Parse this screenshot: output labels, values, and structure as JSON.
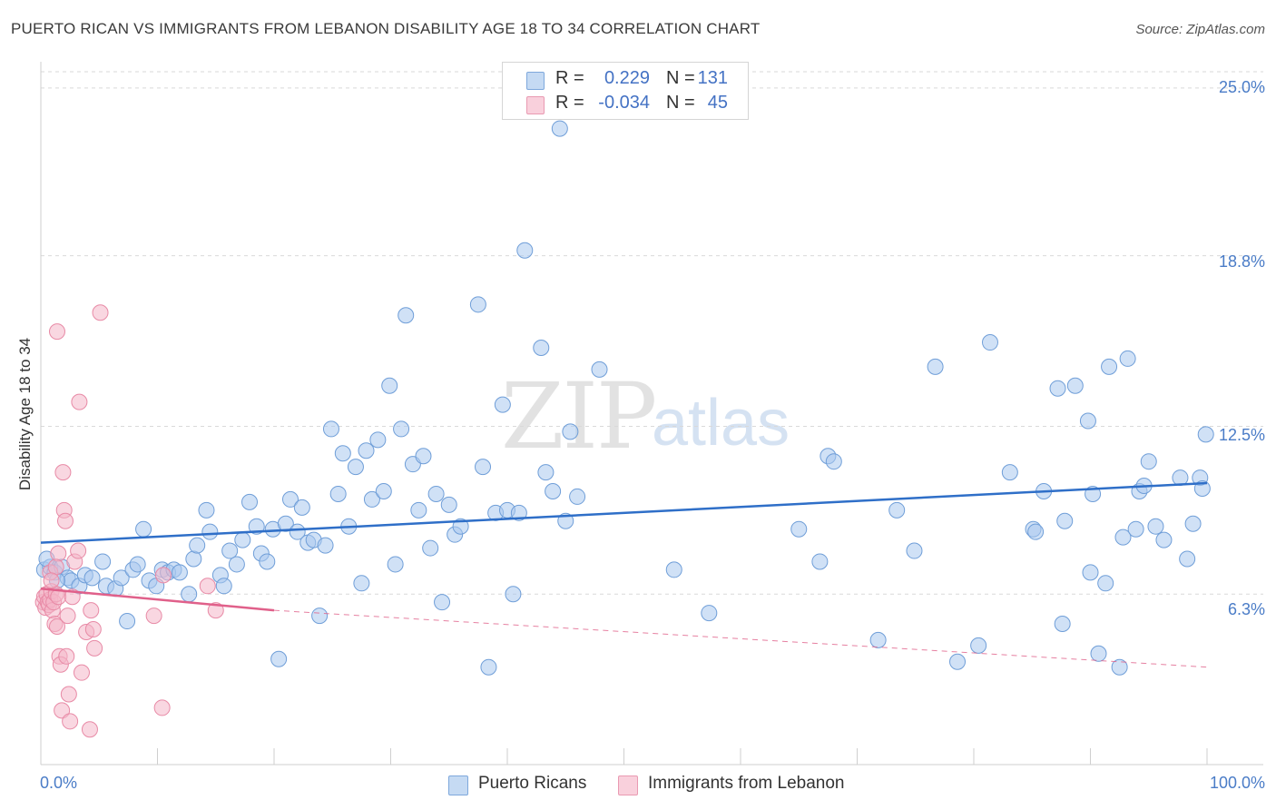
{
  "header": {
    "title": "PUERTO RICAN VS IMMIGRANTS FROM LEBANON DISABILITY AGE 18 TO 34 CORRELATION CHART",
    "source": "Source: ZipAtlas.com"
  },
  "watermark": {
    "zip": "ZIP",
    "atlas": "atlas"
  },
  "legend": {
    "r_label": "R =",
    "n_label": "N =",
    "series": [
      {
        "name": "Puerto Ricans",
        "r": "0.229",
        "n": "131",
        "color": "#a9c8ee"
      },
      {
        "name": "Immigrants from Lebanon",
        "r": "-0.034",
        "n": "45",
        "color": "#f4b6c8"
      }
    ]
  },
  "colors": {
    "blue_fill": "#a9c8ee",
    "blue_stroke": "#6f9ed8",
    "blue_line": "#2f6fc8",
    "pink_fill": "#f4b6c8",
    "pink_stroke": "#e88aa6",
    "pink_line": "#e0608a",
    "tick_text": "#4a7cc7",
    "grid": "#d9d9d9"
  },
  "chart_data": {
    "type": "scatter",
    "title": "PUERTO RICAN VS IMMIGRANTS FROM LEBANON DISABILITY AGE 18 TO 34 CORRELATION CHART",
    "xlabel": "",
    "ylabel": "Disability Age 18 to 34",
    "x_tick_labels": [
      "0.0%",
      "100.0%"
    ],
    "y_tick_labels": [
      "6.3%",
      "12.5%",
      "18.8%",
      "25.0%"
    ],
    "y_ticks": [
      6.3,
      12.5,
      18.8,
      25.0
    ],
    "xlim": [
      0,
      100
    ],
    "ylim": [
      0,
      25.6
    ],
    "grid": true,
    "legend_position": "top-center",
    "series": [
      {
        "name": "Puerto Ricans",
        "points": [
          [
            0.3,
            7.2
          ],
          [
            0.8,
            7.3
          ],
          [
            1.2,
            7.1
          ],
          [
            1.8,
            7.3
          ],
          [
            2.3,
            6.9
          ],
          [
            2.6,
            6.8
          ],
          [
            3.3,
            6.6
          ],
          [
            3.8,
            7.0
          ],
          [
            4.4,
            6.9
          ],
          [
            5.3,
            7.5
          ],
          [
            5.6,
            6.6
          ],
          [
            6.4,
            6.5
          ],
          [
            6.9,
            6.9
          ],
          [
            7.4,
            5.3
          ],
          [
            7.9,
            7.2
          ],
          [
            8.3,
            7.4
          ],
          [
            8.8,
            8.7
          ],
          [
            9.3,
            6.8
          ],
          [
            9.9,
            6.6
          ],
          [
            10.4,
            7.2
          ],
          [
            10.9,
            7.1
          ],
          [
            11.4,
            7.2
          ],
          [
            11.9,
            7.1
          ],
          [
            12.7,
            6.3
          ],
          [
            13.1,
            7.6
          ],
          [
            13.4,
            8.1
          ],
          [
            14.2,
            9.4
          ],
          [
            14.5,
            8.6
          ],
          [
            15.4,
            7.0
          ],
          [
            15.7,
            6.6
          ],
          [
            16.2,
            7.9
          ],
          [
            16.8,
            7.4
          ],
          [
            17.3,
            8.3
          ],
          [
            17.9,
            9.7
          ],
          [
            18.5,
            8.8
          ],
          [
            18.9,
            7.8
          ],
          [
            19.4,
            7.5
          ],
          [
            19.9,
            8.7
          ],
          [
            20.4,
            3.9
          ],
          [
            21.0,
            8.9
          ],
          [
            21.4,
            9.8
          ],
          [
            22.0,
            8.6
          ],
          [
            22.4,
            9.5
          ],
          [
            22.9,
            8.2
          ],
          [
            23.4,
            8.3
          ],
          [
            23.9,
            5.5
          ],
          [
            24.4,
            8.1
          ],
          [
            24.9,
            12.4
          ],
          [
            25.5,
            10.0
          ],
          [
            25.9,
            11.5
          ],
          [
            26.4,
            8.8
          ],
          [
            27.0,
            11.0
          ],
          [
            27.5,
            6.7
          ],
          [
            27.9,
            11.6
          ],
          [
            28.4,
            9.8
          ],
          [
            28.9,
            12.0
          ],
          [
            29.4,
            10.1
          ],
          [
            29.9,
            14.0
          ],
          [
            30.4,
            7.4
          ],
          [
            30.9,
            12.4
          ],
          [
            31.3,
            16.6
          ],
          [
            31.9,
            11.1
          ],
          [
            32.4,
            9.4
          ],
          [
            32.8,
            11.4
          ],
          [
            33.4,
            8.0
          ],
          [
            33.9,
            10.0
          ],
          [
            34.4,
            6.0
          ],
          [
            35.0,
            9.6
          ],
          [
            35.5,
            8.5
          ],
          [
            36.0,
            8.8
          ],
          [
            37.5,
            17.0
          ],
          [
            37.9,
            11.0
          ],
          [
            38.4,
            3.6
          ],
          [
            39.0,
            9.3
          ],
          [
            39.6,
            13.3
          ],
          [
            40.0,
            9.4
          ],
          [
            40.5,
            6.3
          ],
          [
            41.0,
            9.3
          ],
          [
            41.5,
            19.0
          ],
          [
            42.9,
            15.4
          ],
          [
            43.3,
            10.8
          ],
          [
            43.9,
            10.1
          ],
          [
            44.5,
            23.5
          ],
          [
            45.0,
            9.0
          ],
          [
            45.4,
            12.3
          ],
          [
            46.0,
            9.9
          ],
          [
            47.9,
            14.6
          ],
          [
            54.3,
            7.2
          ],
          [
            57.3,
            5.6
          ],
          [
            65.0,
            8.7
          ],
          [
            66.8,
            7.5
          ],
          [
            67.5,
            11.4
          ],
          [
            68.0,
            11.2
          ],
          [
            71.8,
            4.6
          ],
          [
            73.4,
            9.4
          ],
          [
            74.9,
            7.9
          ],
          [
            76.7,
            14.7
          ],
          [
            78.6,
            3.8
          ],
          [
            80.4,
            4.4
          ],
          [
            81.4,
            15.6
          ],
          [
            83.1,
            10.8
          ],
          [
            85.1,
            8.7
          ],
          [
            85.3,
            8.6
          ],
          [
            86.0,
            10.1
          ],
          [
            87.2,
            13.9
          ],
          [
            87.6,
            5.2
          ],
          [
            87.8,
            9.0
          ],
          [
            88.7,
            14.0
          ],
          [
            89.8,
            12.7
          ],
          [
            90.0,
            7.1
          ],
          [
            90.2,
            10.0
          ],
          [
            90.7,
            4.1
          ],
          [
            91.3,
            6.7
          ],
          [
            91.6,
            14.7
          ],
          [
            92.5,
            3.6
          ],
          [
            92.8,
            8.4
          ],
          [
            93.2,
            15.0
          ],
          [
            93.9,
            8.7
          ],
          [
            94.2,
            10.1
          ],
          [
            94.6,
            10.3
          ],
          [
            95.0,
            11.2
          ],
          [
            95.6,
            8.8
          ],
          [
            96.3,
            8.3
          ],
          [
            97.7,
            10.6
          ],
          [
            98.3,
            7.6
          ],
          [
            98.8,
            8.9
          ],
          [
            99.4,
            10.6
          ],
          [
            99.6,
            10.2
          ],
          [
            99.9,
            12.2
          ],
          [
            0.5,
            7.6
          ],
          [
            1.4,
            6.8
          ]
        ],
        "trend": {
          "x": [
            0,
            100
          ],
          "y": [
            8.2,
            10.4
          ]
        }
      },
      {
        "name": "Immigrants from Lebanon",
        "points": [
          [
            0.2,
            6.0
          ],
          [
            0.3,
            6.2
          ],
          [
            0.4,
            5.8
          ],
          [
            0.5,
            6.3
          ],
          [
            0.6,
            6.0
          ],
          [
            0.7,
            5.9
          ],
          [
            0.8,
            6.1
          ],
          [
            0.9,
            6.4
          ],
          [
            1.0,
            5.7
          ],
          [
            1.1,
            6.0
          ],
          [
            1.2,
            5.2
          ],
          [
            1.3,
            6.3
          ],
          [
            1.4,
            5.1
          ],
          [
            1.5,
            6.2
          ],
          [
            1.6,
            4.0
          ],
          [
            1.7,
            3.7
          ],
          [
            1.8,
            2.0
          ],
          [
            1.9,
            10.8
          ],
          [
            2.0,
            9.4
          ],
          [
            2.1,
            9.0
          ],
          [
            2.2,
            4.0
          ],
          [
            2.3,
            5.5
          ],
          [
            2.4,
            2.6
          ],
          [
            2.5,
            1.6
          ],
          [
            2.7,
            6.2
          ],
          [
            2.9,
            7.5
          ],
          [
            3.2,
            7.9
          ],
          [
            3.3,
            13.4
          ],
          [
            3.5,
            3.4
          ],
          [
            3.9,
            4.9
          ],
          [
            4.2,
            1.3
          ],
          [
            4.3,
            5.7
          ],
          [
            4.5,
            5.0
          ],
          [
            4.6,
            4.3
          ],
          [
            5.1,
            16.7
          ],
          [
            1.4,
            16.0
          ],
          [
            1.5,
            7.8
          ],
          [
            0.8,
            7.1
          ],
          [
            1.3,
            7.3
          ],
          [
            9.7,
            5.5
          ],
          [
            10.4,
            2.1
          ],
          [
            10.5,
            7.0
          ],
          [
            14.3,
            6.6
          ],
          [
            15.0,
            5.7
          ],
          [
            0.9,
            6.8
          ]
        ],
        "trend": {
          "x": [
            0,
            20
          ],
          "y": [
            6.5,
            5.7
          ]
        },
        "trend_extension": {
          "x": [
            20,
            100
          ],
          "y": [
            5.7,
            3.6
          ]
        }
      }
    ]
  }
}
